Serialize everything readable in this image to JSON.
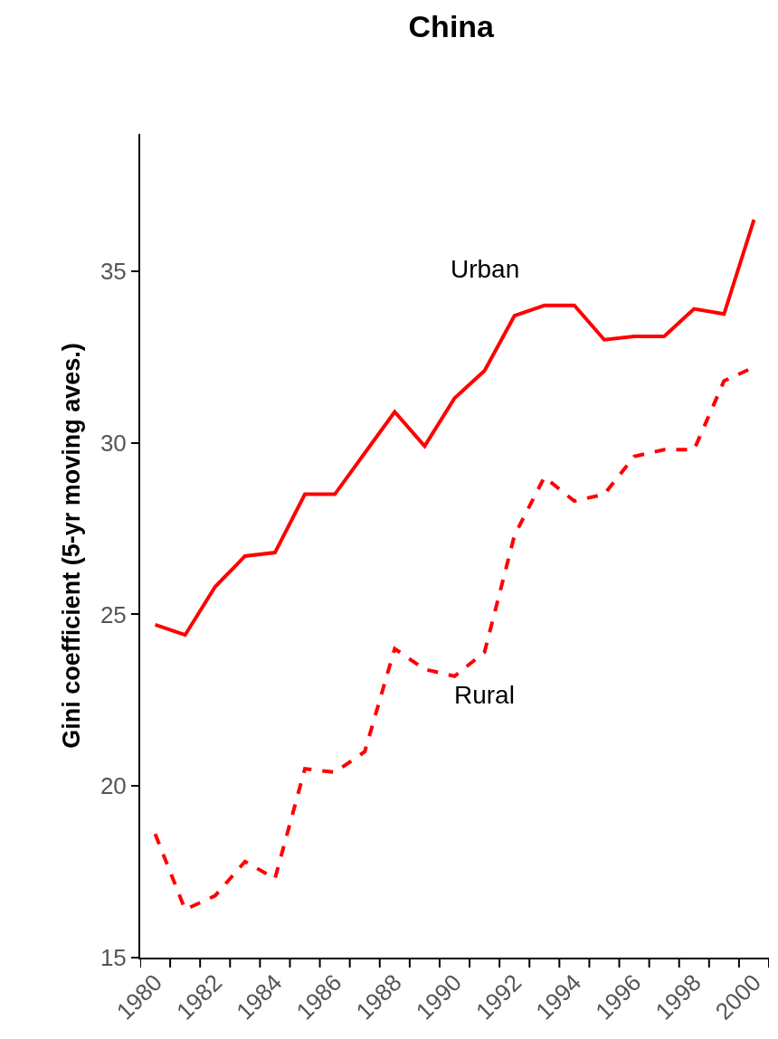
{
  "chart_data": {
    "type": "line",
    "title": "China",
    "ylabel": "Gini coefficient (5-yr moving aves.)",
    "categories": [
      "1980",
      null,
      "1982",
      null,
      "1984",
      null,
      "1986",
      null,
      "1988",
      null,
      "1990",
      null,
      "1992",
      null,
      "1994",
      null,
      "1996",
      null,
      "1998",
      null,
      "2000"
    ],
    "series": [
      {
        "name": "Urban",
        "color": "#ff0000",
        "line_style": "solid",
        "values": [
          24.7,
          24.4,
          25.8,
          26.7,
          26.8,
          28.5,
          28.5,
          29.7,
          30.9,
          29.9,
          31.3,
          32.1,
          33.7,
          34.0,
          34.0,
          33.0,
          33.1,
          33.1,
          33.9,
          33.75,
          36.5
        ]
      },
      {
        "name": "Rural",
        "color": "#ff0000",
        "line_style": "dashed",
        "values": [
          18.6,
          16.4,
          16.8,
          17.8,
          17.3,
          20.5,
          20.4,
          21.0,
          24.0,
          23.4,
          23.2,
          23.9,
          27.3,
          29.0,
          28.3,
          28.5,
          29.6,
          29.8,
          29.8,
          31.8,
          32.2
        ]
      }
    ],
    "ylim": [
      15,
      39
    ],
    "yticks": [
      15,
      20,
      25,
      30,
      35
    ],
    "grid": false,
    "legend": false,
    "marker": "none"
  }
}
